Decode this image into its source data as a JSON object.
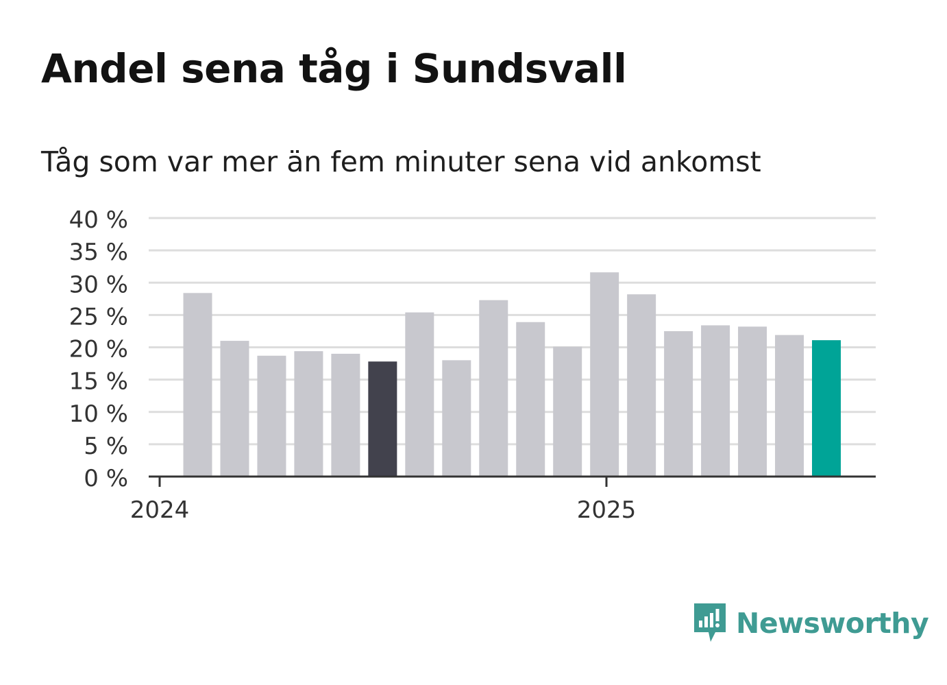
{
  "title": "Andel sena tåg i Sundsvall",
  "subtitle": "Tåg som var mer än fem minuter sena vid ankomst",
  "brand": {
    "name": "Newsworthy"
  },
  "colors": {
    "default_bar": "#c8c8ce",
    "highlight_bar": "#42424d",
    "latest_bar": "#00a497",
    "grid": "#dddddd",
    "axis": "#333333",
    "brand": "#3f9b93"
  },
  "chart_data": {
    "type": "bar",
    "x": [
      "2024-01",
      "2024-02",
      "2024-03",
      "2024-04",
      "2024-05",
      "2024-06",
      "2024-07",
      "2024-08",
      "2024-09",
      "2024-10",
      "2024-11",
      "2024-12",
      "2025-01",
      "2025-02",
      "2025-03",
      "2025-04",
      "2025-05",
      "2025-06"
    ],
    "values": [
      28.4,
      21.0,
      18.7,
      19.4,
      19.0,
      17.8,
      25.4,
      18.0,
      27.3,
      23.9,
      20.1,
      31.6,
      28.2,
      22.5,
      23.4,
      23.2,
      21.9,
      21.1
    ],
    "bar_colors": [
      "default",
      "default",
      "default",
      "default",
      "default",
      "highlight",
      "default",
      "default",
      "default",
      "default",
      "default",
      "default",
      "default",
      "default",
      "default",
      "default",
      "default",
      "latest"
    ],
    "ylim": [
      0,
      40
    ],
    "y_ticks": [
      0,
      5,
      10,
      15,
      20,
      25,
      30,
      35,
      40
    ],
    "y_tick_labels": [
      "0 %",
      "5 %",
      "10 %",
      "15 %",
      "20 %",
      "25 %",
      "30 %",
      "35 %",
      "40 %"
    ],
    "x_tick_labels": [
      {
        "at": "2024-01",
        "label": "2024"
      },
      {
        "at": "2025-01",
        "label": "2025"
      }
    ],
    "xlabel": "",
    "ylabel": "",
    "grid": true,
    "legend": "none"
  }
}
